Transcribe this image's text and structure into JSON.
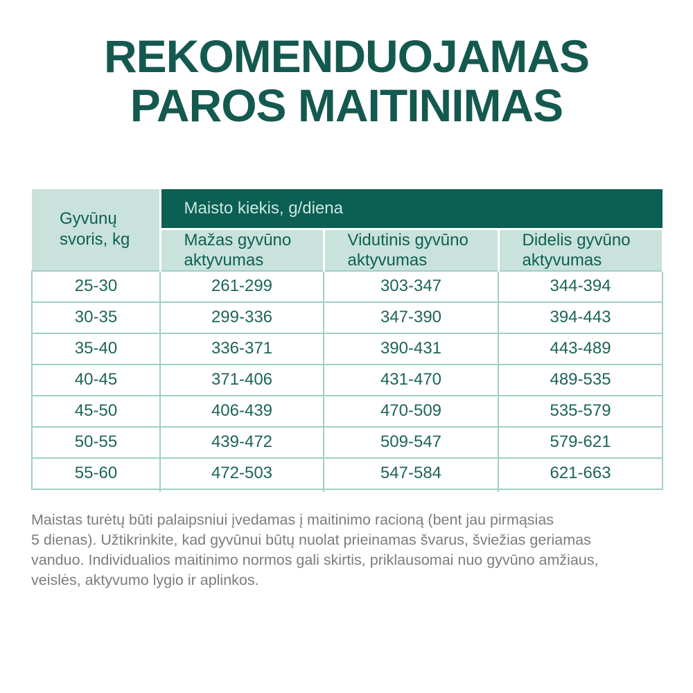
{
  "title": {
    "line1": "REKOMENDUOJAMAS",
    "line2": "PAROS MAITINIMAS"
  },
  "table": {
    "weight_header": "Gyvūnų svoris, kg",
    "group_header": "Maisto kiekis, g/diena",
    "activity_headers": [
      "Mažas gyvūno aktyvumas",
      "Vidutinis gyvūno aktyvumas",
      "Didelis gyvūno aktyvumas"
    ]
  },
  "chart_data": {
    "type": "table",
    "title": "REKOMENDUOJAMAS PAROS MAITINIMAS",
    "columns": [
      "Gyvūnų svoris, kg",
      "Mažas gyvūno aktyvumas",
      "Vidutinis gyvūno aktyvumas",
      "Didelis gyvūno aktyvumas"
    ],
    "units": "g/diena",
    "rows": [
      [
        "25-30",
        "261-299",
        "303-347",
        "344-394"
      ],
      [
        "30-35",
        "299-336",
        "347-390",
        "394-443"
      ],
      [
        "35-40",
        "336-371",
        "390-431",
        "443-489"
      ],
      [
        "40-45",
        "371-406",
        "431-470",
        "489-535"
      ],
      [
        "45-50",
        "406-439",
        "470-509",
        "535-579"
      ],
      [
        "50-55",
        "439-472",
        "509-547",
        "579-621"
      ],
      [
        "55-60",
        "472-503",
        "547-584",
        "621-663"
      ]
    ]
  },
  "footer": {
    "lines": [
      "Maistas turėtų būti palaipsniui įvedamas į maitinimo racioną (bent jau pirmąsias",
      "5 dienas). Užtikrinkite, kad gyvūnui būtų nuolat prieinamas švarus, šviežias geriamas",
      "vanduo. Individualios maitinimo normos gali skirtis, priklausomai nuo gyvūno amžiaus,",
      "veislės, aktyvumo lygio ir aplinkos."
    ]
  },
  "colors": {
    "dark_teal": "#0B5F53",
    "light_mint": "#C9E2DB",
    "header_text_light": "#CDE7E0",
    "teal_text": "#0E6054",
    "body_text": "#1C6459",
    "table_border": "#9FD0C5",
    "title_text": "#14594F",
    "footer_gray": "#7C7C7C"
  }
}
